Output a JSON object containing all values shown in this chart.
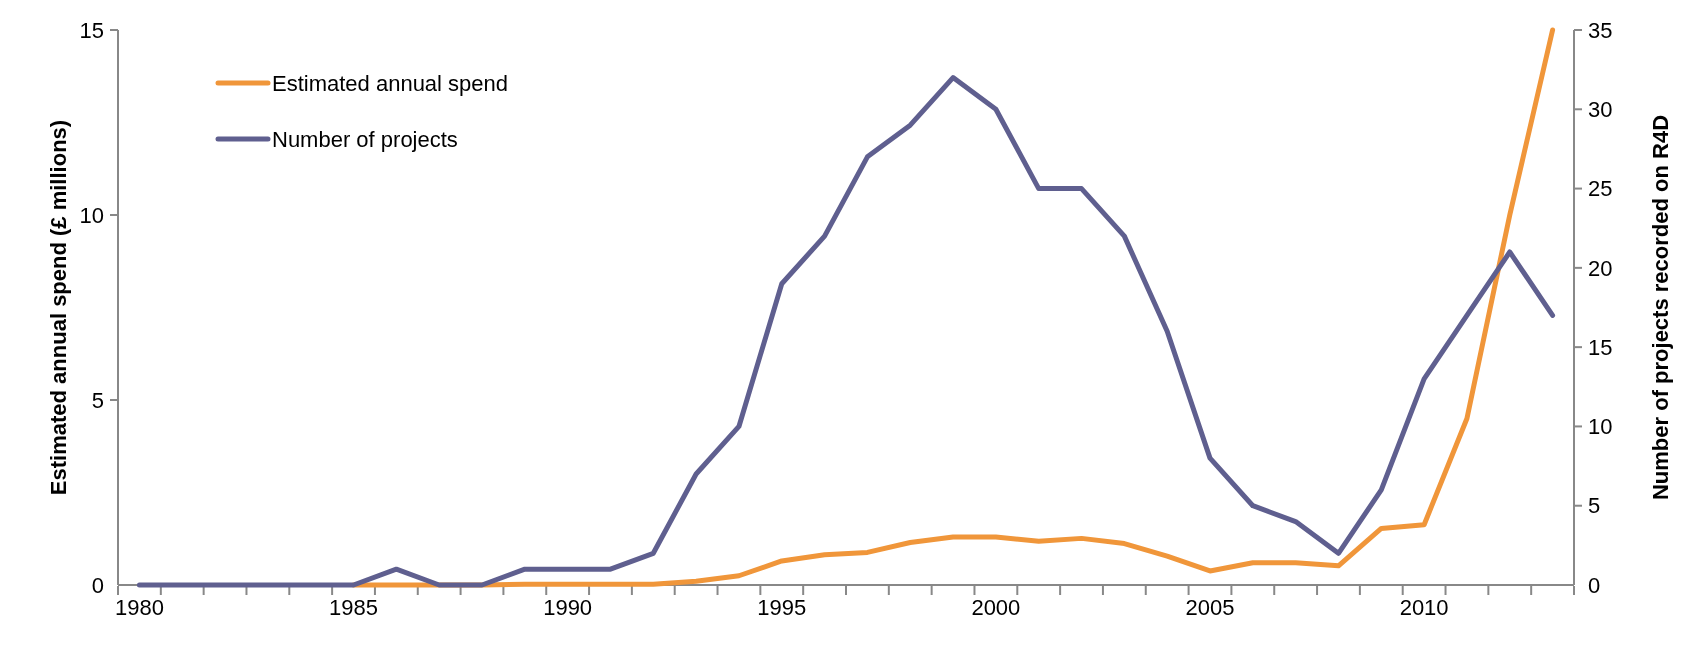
{
  "chart_data": {
    "type": "line",
    "x": [
      1980,
      1981,
      1982,
      1983,
      1984,
      1985,
      1986,
      1987,
      1988,
      1989,
      1990,
      1991,
      1992,
      1993,
      1994,
      1995,
      1996,
      1997,
      1998,
      1999,
      2000,
      2001,
      2002,
      2003,
      2004,
      2005,
      2006,
      2007,
      2008,
      2009,
      2010,
      2011,
      2012,
      2013
    ],
    "series": [
      {
        "name": "Estimated annual spend",
        "color": "#f0963a",
        "values": [
          null,
          null,
          null,
          null,
          null,
          0,
          0,
          0,
          0,
          0.02,
          0.02,
          0.02,
          0.02,
          0.1,
          0.25,
          0.65,
          0.82,
          0.88,
          1.15,
          1.3,
          1.3,
          1.18,
          1.26,
          1.12,
          0.78,
          0.38,
          0.6,
          0.6,
          0.52,
          1.53,
          1.63,
          4.5,
          10,
          15
        ]
      },
      {
        "name": "Number of projects",
        "color": "#5f5f8f",
        "axis": "y2",
        "values": [
          0,
          0,
          0,
          0,
          0,
          0,
          1,
          0,
          0,
          1,
          1,
          1,
          2,
          7,
          10,
          19,
          22,
          27,
          29,
          32,
          30,
          25,
          25,
          22,
          16,
          8,
          5,
          4,
          2,
          6,
          13,
          17,
          21,
          17
        ]
      }
    ],
    "xlim": [
      1979.5,
      2013.5
    ],
    "xticks": [
      1980,
      1985,
      1990,
      1995,
      2000,
      2005,
      2010,
      {
        "value": 1979.5,
        "label": null
      },
      {
        "value": 1980.5,
        "label": null
      },
      {
        "value": 1981.5,
        "label": null
      },
      {
        "value": 1982.5,
        "label": null
      },
      {
        "value": 1983.5,
        "label": null
      },
      {
        "value": 1984.5,
        "label": null
      },
      {
        "value": 1985.5,
        "label": null
      },
      {
        "value": 1986.5,
        "label": null
      },
      {
        "value": 1987.5,
        "label": null
      },
      {
        "value": 1988.5,
        "label": null
      },
      {
        "value": 1989.5,
        "label": null
      },
      {
        "value": 1990.5,
        "label": null
      },
      {
        "value": 1991.5,
        "label": null
      },
      {
        "value": 1992.5,
        "label": null
      },
      {
        "value": 1993.5,
        "label": null
      },
      {
        "value": 1994.5,
        "label": null
      },
      {
        "value": 1995.5,
        "label": null
      },
      {
        "value": 1996.5,
        "label": null
      },
      {
        "value": 1997.5,
        "label": null
      },
      {
        "value": 1998.5,
        "label": null
      },
      {
        "value": 1999.5,
        "label": null
      },
      {
        "value": 2000.5,
        "label": null
      },
      {
        "value": 2001.5,
        "label": null
      },
      {
        "value": 2002.5,
        "label": null
      },
      {
        "value": 2003.5,
        "label": null
      },
      {
        "value": 2004.5,
        "label": null
      },
      {
        "value": 2005.5,
        "label": null
      },
      {
        "value": 2006.5,
        "label": null
      },
      {
        "value": 2007.5,
        "label": null
      },
      {
        "value": 2008.5,
        "label": null
      },
      {
        "value": 2009.5,
        "label": null
      },
      {
        "value": 2010.5,
        "label": null
      },
      {
        "value": 2011.5,
        "label": null
      },
      {
        "value": 2012.5,
        "label": null
      },
      {
        "value": 2013.5,
        "label": null
      }
    ],
    "ylim": [
      0,
      15
    ],
    "yticks": [
      0,
      5,
      10,
      15
    ],
    "y2lim": [
      0,
      35
    ],
    "y2ticks": [
      0,
      5,
      10,
      15,
      20,
      25,
      30,
      35
    ],
    "ylabel": "Estimated annual spend (£ millions)",
    "y2label": "Number of projects recorded on R4D",
    "legend": "top left",
    "grid": false,
    "marker": "none",
    "line_style": "solid"
  }
}
